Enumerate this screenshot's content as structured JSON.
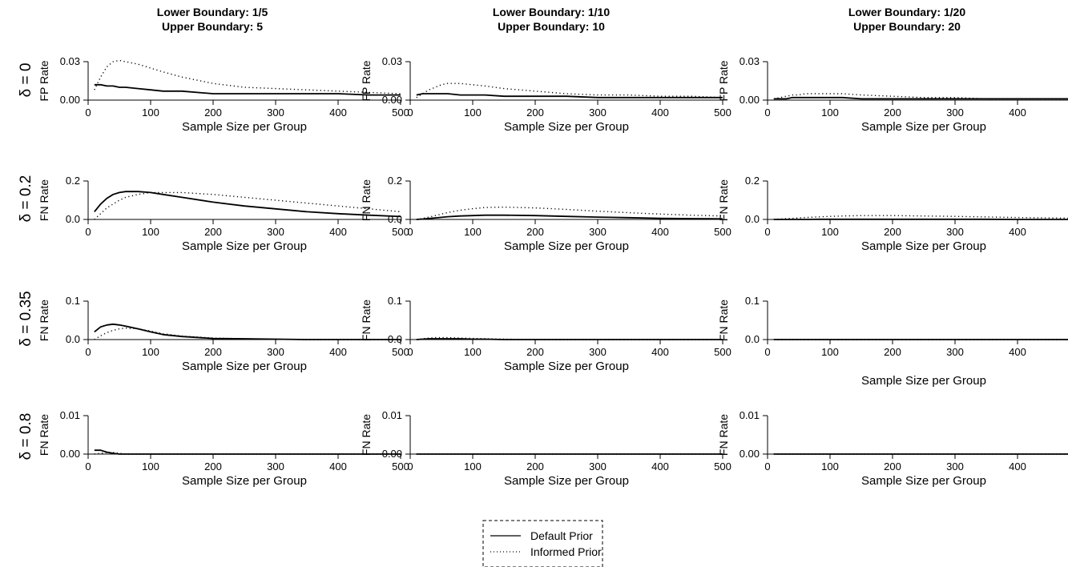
{
  "column_titles": [
    {
      "lower": "Lower Boundary: 1/5",
      "upper": "Upper Boundary: 5"
    },
    {
      "lower": "Lower Boundary: 1/10",
      "upper": "Upper Boundary: 10"
    },
    {
      "lower": "Lower Boundary: 1/20",
      "upper": "Upper Boundary: 20"
    }
  ],
  "row_labels": [
    "δ = 0",
    "δ = 0.2",
    "δ = 0.35",
    "δ = 0.8"
  ],
  "legend": {
    "entries": [
      {
        "label": "Default Prior",
        "style": "solid"
      },
      {
        "label": "Informed Prior",
        "style": "dotted"
      }
    ]
  },
  "chart_data": {
    "type": "line",
    "panel_grid": {
      "rows": 4,
      "cols": 3
    },
    "xlabel": "Sample Size per Group",
    "xlim": [
      0,
      500
    ],
    "xticks": [
      0,
      100,
      200,
      300,
      400,
      500
    ],
    "rows": [
      {
        "ylabel": "FP Rate",
        "ylim": [
          0,
          0.03
        ],
        "yticks": [
          0.0,
          0.03
        ],
        "ytick_labels": [
          "0.00",
          "0.03"
        ]
      },
      {
        "ylabel": "FN Rate",
        "ylim": [
          0,
          0.2
        ],
        "yticks": [
          0.0,
          0.2
        ],
        "ytick_labels": [
          "0.0",
          "0.2"
        ]
      },
      {
        "ylabel": "FN Rate",
        "ylim": [
          0,
          0.1
        ],
        "yticks": [
          0.0,
          0.1
        ],
        "ytick_labels": [
          "0.0",
          "0.1"
        ]
      },
      {
        "ylabel": "FN Rate",
        "ylim": [
          0,
          0.01
        ],
        "yticks": [
          0.0,
          0.01
        ],
        "ytick_labels": [
          "0.00",
          "0.01"
        ]
      }
    ],
    "x": [
      10,
      20,
      30,
      40,
      50,
      60,
      80,
      100,
      120,
      150,
      200,
      250,
      300,
      350,
      400,
      450,
      500
    ],
    "panels": [
      [
        {
          "default": [
            0.012,
            0.012,
            0.011,
            0.011,
            0.01,
            0.01,
            0.009,
            0.008,
            0.007,
            0.007,
            0.005,
            0.005,
            0.005,
            0.005,
            0.005,
            0.004,
            0.004
          ],
          "informed": [
            0.008,
            0.018,
            0.026,
            0.03,
            0.031,
            0.03,
            0.028,
            0.025,
            0.022,
            0.018,
            0.013,
            0.01,
            0.009,
            0.008,
            0.007,
            0.006,
            0.005
          ]
        },
        {
          "default": [
            0.004,
            0.005,
            0.005,
            0.005,
            0.005,
            0.005,
            0.004,
            0.004,
            0.004,
            0.003,
            0.003,
            0.003,
            0.002,
            0.002,
            0.002,
            0.002,
            0.002
          ],
          "informed": [
            0.002,
            0.005,
            0.008,
            0.01,
            0.012,
            0.013,
            0.013,
            0.012,
            0.011,
            0.009,
            0.007,
            0.005,
            0.004,
            0.004,
            0.003,
            0.003,
            0.002
          ]
        },
        {
          "default": [
            0.001,
            0.001,
            0.001,
            0.002,
            0.002,
            0.002,
            0.002,
            0.002,
            0.002,
            0.001,
            0.001,
            0.001,
            0.001,
            0.001,
            0.001,
            0.001,
            0.001
          ],
          "informed": [
            0.001,
            0.002,
            0.003,
            0.004,
            0.004,
            0.005,
            0.005,
            0.005,
            0.005,
            0.004,
            0.003,
            0.002,
            0.002,
            0.001,
            0.001,
            0.001,
            0.001
          ]
        }
      ],
      [
        {
          "default": [
            0.04,
            0.08,
            0.11,
            0.13,
            0.14,
            0.145,
            0.145,
            0.14,
            0.13,
            0.115,
            0.09,
            0.07,
            0.055,
            0.04,
            0.03,
            0.022,
            0.015
          ],
          "informed": [
            0.0,
            0.03,
            0.06,
            0.08,
            0.1,
            0.115,
            0.13,
            0.14,
            0.14,
            0.14,
            0.13,
            0.115,
            0.1,
            0.085,
            0.07,
            0.055,
            0.04
          ]
        },
        {
          "default": [
            0.0,
            0.002,
            0.005,
            0.008,
            0.011,
            0.014,
            0.018,
            0.02,
            0.022,
            0.022,
            0.02,
            0.016,
            0.012,
            0.009,
            0.006,
            0.004,
            0.003
          ],
          "informed": [
            0.0,
            0.005,
            0.012,
            0.02,
            0.028,
            0.036,
            0.048,
            0.056,
            0.062,
            0.064,
            0.06,
            0.052,
            0.043,
            0.035,
            0.028,
            0.022,
            0.018
          ]
        },
        {
          "default": [
            0.0,
            0.0,
            0.0,
            0.0,
            0.0,
            0.0,
            0.001,
            0.001,
            0.001,
            0.001,
            0.001,
            0.001,
            0.001,
            0.001,
            0.0,
            0.0,
            0.0
          ],
          "informed": [
            0.0,
            0.002,
            0.004,
            0.006,
            0.008,
            0.01,
            0.013,
            0.016,
            0.018,
            0.02,
            0.02,
            0.018,
            0.016,
            0.013,
            0.01,
            0.008,
            0.006
          ]
        }
      ],
      [
        {
          "default": [
            0.02,
            0.033,
            0.038,
            0.04,
            0.038,
            0.035,
            0.028,
            0.02,
            0.013,
            0.008,
            0.003,
            0.002,
            0.001,
            0.0,
            0.0,
            0.0,
            0.0
          ],
          "informed": [
            0.0,
            0.01,
            0.018,
            0.024,
            0.028,
            0.03,
            0.028,
            0.022,
            0.015,
            0.009,
            0.004,
            0.002,
            0.001,
            0.0,
            0.0,
            0.0,
            0.0
          ]
        },
        {
          "default": [
            0.0,
            0.001,
            0.002,
            0.002,
            0.002,
            0.002,
            0.002,
            0.001,
            0.001,
            0.0,
            0.0,
            0.0,
            0.0,
            0.0,
            0.0,
            0.0,
            0.0
          ],
          "informed": [
            0.0,
            0.002,
            0.004,
            0.005,
            0.005,
            0.005,
            0.004,
            0.003,
            0.002,
            0.001,
            0.0,
            0.0,
            0.0,
            0.0,
            0.0,
            0.0,
            0.0
          ]
        },
        {
          "default": [
            0,
            0,
            0,
            0,
            0,
            0,
            0,
            0,
            0,
            0,
            0,
            0,
            0,
            0,
            0,
            0,
            0
          ],
          "informed": [
            0,
            0,
            0,
            0,
            0,
            0,
            0,
            0,
            0,
            0,
            0,
            0,
            0,
            0,
            0,
            0,
            0
          ]
        }
      ],
      [
        {
          "default": [
            0.001,
            0.001,
            0.0005,
            0.0002,
            0.0,
            0.0,
            0.0,
            0.0,
            0.0,
            0.0,
            0.0,
            0.0,
            0.0,
            0.0,
            0.0,
            0.0,
            0.0
          ],
          "informed": [
            0.0,
            0.0002,
            0.0004,
            0.0004,
            0.0002,
            0.0,
            0.0,
            0.0,
            0.0,
            0.0,
            0.0,
            0.0,
            0.0,
            0.0,
            0.0,
            0.0,
            0.0
          ]
        },
        {
          "default": [
            0,
            0,
            0,
            0,
            0,
            0,
            0,
            0,
            0,
            0,
            0,
            0,
            0,
            0,
            0,
            0,
            0
          ],
          "informed": [
            0,
            0,
            0,
            0,
            0,
            0,
            0,
            0,
            0,
            0,
            0,
            0,
            0,
            0,
            0,
            0,
            0
          ]
        },
        {
          "default": [
            0,
            0,
            0,
            0,
            0,
            0,
            0,
            0,
            0,
            0,
            0,
            0,
            0,
            0,
            0,
            0,
            0
          ],
          "informed": [
            0,
            0,
            0,
            0,
            0,
            0,
            0,
            0,
            0,
            0,
            0,
            0,
            0,
            0,
            0,
            0,
            0
          ]
        }
      ]
    ]
  }
}
